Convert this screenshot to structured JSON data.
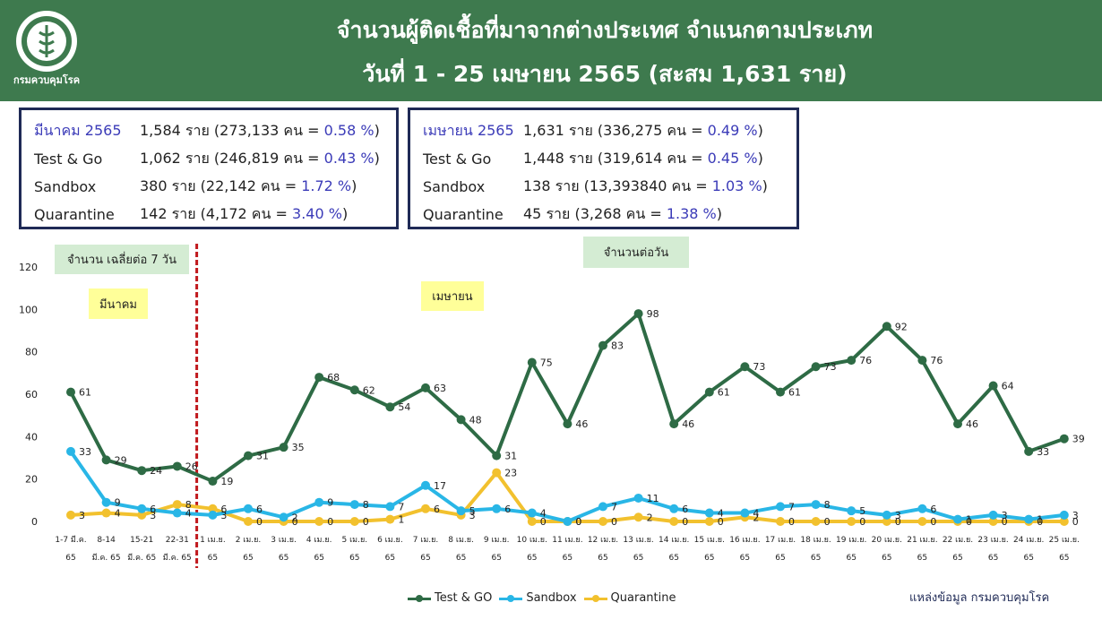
{
  "header": {
    "title_line1": "จำนวนผู้ติดเชื้อที่มาจากต่างประเทศ จำแนกตามประเภท",
    "title_line2": "วันที่  1 - 25 เมษายน  2565 (สะสม 1,631 ราย)",
    "logo_text": "กรมควบคุมโรค"
  },
  "march_box": {
    "rows": [
      {
        "label": "มีนาคม 2565",
        "value": "1,584 ราย (273,133 คน = ",
        "pct": "0.58 %",
        "close": ")"
      },
      {
        "label": "Test & Go",
        "value": "1,062 ราย (246,819 คน = ",
        "pct": "0.43 %",
        "close": ")"
      },
      {
        "label": "Sandbox",
        "value": "380 ราย (22,142 คน  = ",
        "pct": "1.72 %",
        "close": ")"
      },
      {
        "label": "Quarantine",
        "value": "142 ราย (4,172 คน  = ",
        "pct": "3.40 %",
        "close": ")"
      }
    ]
  },
  "april_box": {
    "rows": [
      {
        "label": "เมษายน 2565",
        "value": "1,631 ราย (336,275 คน  = ",
        "pct": "0.49 %",
        "close": ")"
      },
      {
        "label": "Test & Go",
        "value": "1,448 ราย (319,614 คน = ",
        "pct": "0.45 %",
        "close": ")"
      },
      {
        "label": "Sandbox",
        "value": "138 ราย (13,393840 คน  = ",
        "pct": "1.03 %",
        "close": ")"
      },
      {
        "label": "Quarantine",
        "value": "45 ราย (3,268 คน  = ",
        "pct": "1.38 %",
        "close": ")"
      }
    ]
  },
  "notes": {
    "avg7": "จำนวน เฉลี่ยต่อ 7 วัน",
    "march": "มีนาคม",
    "april": "เมษายน",
    "daily": "จำนวนต่อวัน"
  },
  "source": "แหล่งข้อมูล กรมควบคุมโรค",
  "colors": {
    "header": "#3e7a4e",
    "test_go": "#2e6b45",
    "sandbox": "#29b6e6",
    "quarantine": "#f2c12e",
    "divider": "#c0181c"
  },
  "chart_data": {
    "type": "line",
    "ylim": [
      0,
      120
    ],
    "yticks": [
      0,
      20,
      40,
      60,
      80,
      100,
      120
    ],
    "categories": [
      [
        "1-7 มี.ค.",
        "65"
      ],
      [
        "8-14",
        "มี.ค. 65"
      ],
      [
        "15-21",
        "มี.ค. 65"
      ],
      [
        "22-31",
        "มี.ค. 65"
      ],
      [
        "1 เม.ย.",
        "65"
      ],
      [
        "2 เม.ย.",
        "65"
      ],
      [
        "3 เม.ย.",
        "65"
      ],
      [
        "4 เม.ย.",
        "65"
      ],
      [
        "5 เม.ย.",
        "65"
      ],
      [
        "6 เม.ย.",
        "65"
      ],
      [
        "7 เม.ย.",
        "65"
      ],
      [
        "8 เม.ย.",
        "65"
      ],
      [
        "9 เม.ย.",
        "65"
      ],
      [
        "10 เม.ย.",
        "65"
      ],
      [
        "11 เม.ย.",
        "65"
      ],
      [
        "12 เม.ย.",
        "65"
      ],
      [
        "13 เม.ย.",
        "65"
      ],
      [
        "14 เม.ย.",
        "65"
      ],
      [
        "15 เม.ย.",
        "65"
      ],
      [
        "16 เม.ย.",
        "65"
      ],
      [
        "17 เม.ย.",
        "65"
      ],
      [
        "18 เม.ย.",
        "65"
      ],
      [
        "19 เม.ย.",
        "65"
      ],
      [
        "20 เม.ย.",
        "65"
      ],
      [
        "21 เม.ย.",
        "65"
      ],
      [
        "22 เม.ย.",
        "65"
      ],
      [
        "23 เม.ย.",
        "65"
      ],
      [
        "24 เม.ย.",
        "65"
      ],
      [
        "25 เม.ย.",
        "65"
      ]
    ],
    "divider_after_index": 3,
    "series": [
      {
        "name": "Test & GO",
        "color": "#2e6b45",
        "values": [
          61,
          29,
          24,
          26,
          19,
          31,
          35,
          68,
          62,
          54,
          63,
          48,
          31,
          75,
          46,
          83,
          98,
          46,
          61,
          73,
          61,
          73,
          76,
          92,
          76,
          46,
          64,
          33,
          39
        ]
      },
      {
        "name": "Sandbox",
        "color": "#29b6e6",
        "values": [
          33,
          9,
          6,
          4,
          3,
          6,
          2,
          9,
          8,
          7,
          17,
          5,
          6,
          4,
          0,
          7,
          11,
          6,
          4,
          4,
          7,
          8,
          5,
          3,
          6,
          1,
          3,
          1,
          3
        ]
      },
      {
        "name": "Quarantine",
        "color": "#f2c12e",
        "values": [
          3,
          4,
          3,
          8,
          6,
          0,
          0,
          0,
          0,
          1,
          6,
          3,
          23,
          0,
          0,
          0,
          2,
          0,
          0,
          2,
          0,
          0,
          0,
          0,
          0,
          0,
          0,
          0,
          0
        ]
      }
    ]
  }
}
